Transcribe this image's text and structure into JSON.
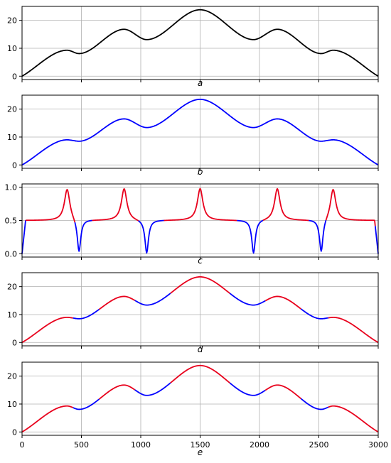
{
  "chart_data": [
    {
      "type": "line",
      "panel_label": "a",
      "xlim": [
        0,
        3000
      ],
      "ylim": [
        -1.2,
        25
      ],
      "yticks": [
        0,
        10,
        20
      ],
      "ytick_labels": [
        "0",
        "10",
        "20"
      ],
      "xticks": [
        0,
        500,
        1000,
        1500,
        2000,
        2500,
        3000
      ],
      "xtick_labels": [],
      "grid": true,
      "series": [
        {
          "color": "#000000",
          "kind": "profile",
          "peak": 23.8,
          "ext": [
            [
              380,
              9.3,
              "max"
            ],
            [
              480,
              8.1,
              "min"
            ],
            [
              860,
              16.8,
              "max"
            ],
            [
              1050,
              13.1,
              "min"
            ],
            [
              1950,
              13.1,
              "min"
            ],
            [
              2150,
              16.8,
              "max"
            ],
            [
              2520,
              8.1,
              "min"
            ],
            [
              2620,
              9.3,
              "max"
            ]
          ]
        }
      ]
    },
    {
      "type": "line",
      "panel_label": "b",
      "xlim": [
        0,
        3000
      ],
      "ylim": [
        -1.2,
        25
      ],
      "yticks": [
        0,
        10,
        20
      ],
      "ytick_labels": [
        "0",
        "10",
        "20"
      ],
      "xticks": [
        0,
        500,
        1000,
        1500,
        2000,
        2500,
        3000
      ],
      "xtick_labels": [],
      "grid": true,
      "series": [
        {
          "color": "#0000ff",
          "kind": "profile",
          "peak": 23.5,
          "ext": [
            [
              380,
              9.0,
              "max"
            ],
            [
              480,
              8.5,
              "min"
            ],
            [
              860,
              16.5,
              "max"
            ],
            [
              1050,
              13.4,
              "min"
            ],
            [
              1950,
              13.4,
              "min"
            ],
            [
              2150,
              16.5,
              "max"
            ],
            [
              2520,
              8.5,
              "min"
            ],
            [
              2620,
              9.0,
              "max"
            ]
          ]
        }
      ]
    },
    {
      "type": "line",
      "panel_label": "c",
      "xlim": [
        0,
        3000
      ],
      "ylim": [
        -0.05,
        1.05
      ],
      "yticks": [
        0,
        0.5,
        1
      ],
      "ytick_labels": [
        "0.0",
        "0.5",
        "1.0"
      ],
      "xticks": [
        0,
        500,
        1000,
        1500,
        2000,
        2500,
        3000
      ],
      "xtick_labels": [],
      "grid": true,
      "series": [
        {
          "color_positive": "#e8001c",
          "color_negative": "#0000ff",
          "kind": "prob",
          "peaks": [
            380,
            860,
            1500,
            2150,
            2620
          ],
          "dips": [
            480,
            1050,
            1950,
            2520
          ]
        }
      ]
    },
    {
      "type": "line",
      "panel_label": "d",
      "xlim": [
        0,
        3000
      ],
      "ylim": [
        -1.2,
        25
      ],
      "yticks": [
        0,
        10,
        20
      ],
      "ytick_labels": [
        "0",
        "10",
        "20"
      ],
      "xticks": [
        0,
        500,
        1000,
        1500,
        2000,
        2500,
        3000
      ],
      "xtick_labels": [],
      "grid": true,
      "series": [
        {
          "color_positive": "#e8001c",
          "color_negative": "#0000ff",
          "kind": "profile",
          "peak": 23.5,
          "ext": [
            [
              380,
              9.0,
              "max"
            ],
            [
              480,
              8.5,
              "min"
            ],
            [
              860,
              16.5,
              "max"
            ],
            [
              1050,
              13.4,
              "min"
            ],
            [
              1950,
              13.4,
              "min"
            ],
            [
              2150,
              16.5,
              "max"
            ],
            [
              2520,
              8.5,
              "min"
            ],
            [
              2620,
              9.0,
              "max"
            ]
          ],
          "segments": [
            [
              0,
              430,
              "pos"
            ],
            [
              430,
              650,
              "neg"
            ],
            [
              650,
              950,
              "pos"
            ],
            [
              950,
              1250,
              "neg"
            ],
            [
              1250,
              1750,
              "pos"
            ],
            [
              1750,
              2050,
              "neg"
            ],
            [
              2050,
              2350,
              "pos"
            ],
            [
              2350,
              2580,
              "neg"
            ],
            [
              2580,
              3000,
              "pos"
            ]
          ]
        }
      ]
    },
    {
      "type": "line",
      "panel_label": "e",
      "xlim": [
        0,
        3000
      ],
      "ylim": [
        -1.2,
        25
      ],
      "yticks": [
        0,
        10,
        20
      ],
      "ytick_labels": [
        "0",
        "10",
        "20"
      ],
      "xticks": [
        0,
        500,
        1000,
        1500,
        2000,
        2500,
        3000
      ],
      "xtick_labels": [
        "0",
        "500",
        "1000",
        "1500",
        "2000",
        "2500",
        "3000"
      ],
      "grid": true,
      "series": [
        {
          "color_positive": "#e8001c",
          "color_negative": "#0000ff",
          "kind": "profile",
          "peak": 23.8,
          "ext": [
            [
              380,
              9.3,
              "max"
            ],
            [
              480,
              8.1,
              "min"
            ],
            [
              860,
              16.8,
              "max"
            ],
            [
              1050,
              13.1,
              "min"
            ],
            [
              1950,
              13.1,
              "min"
            ],
            [
              2150,
              16.8,
              "max"
            ],
            [
              2520,
              8.1,
              "min"
            ],
            [
              2620,
              9.3,
              "max"
            ]
          ],
          "segments": [
            [
              0,
              430,
              "pos"
            ],
            [
              430,
              650,
              "neg"
            ],
            [
              650,
              950,
              "pos"
            ],
            [
              950,
              1250,
              "neg"
            ],
            [
              1250,
              1750,
              "pos"
            ],
            [
              1750,
              2050,
              "neg"
            ],
            [
              2050,
              2350,
              "pos"
            ],
            [
              2350,
              2580,
              "neg"
            ],
            [
              2580,
              3000,
              "pos"
            ]
          ]
        }
      ]
    }
  ]
}
